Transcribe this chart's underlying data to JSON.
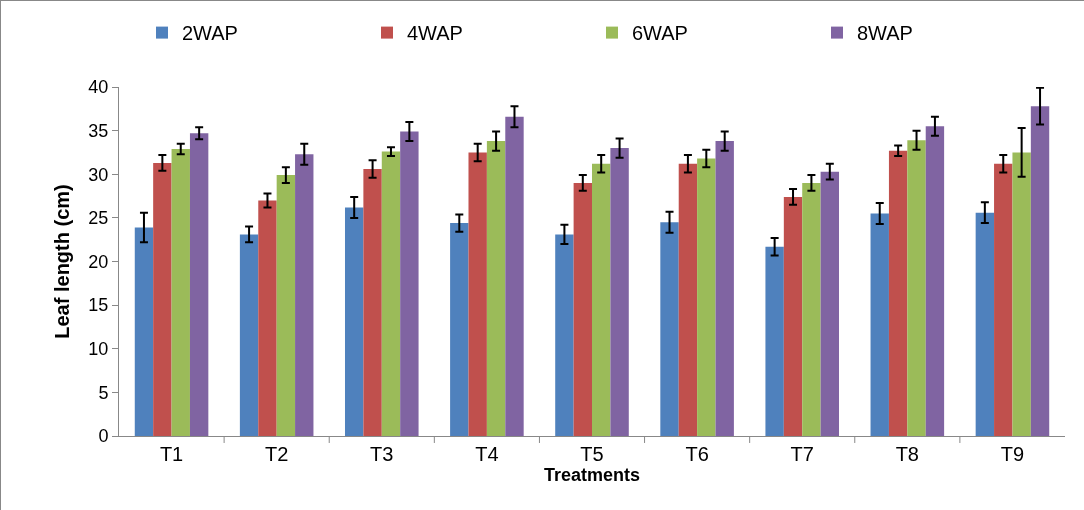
{
  "chart_data": {
    "type": "bar",
    "xlabel": "Treatments",
    "ylabel": "Leaf length (cm)",
    "categories": [
      "T1",
      "T2",
      "T3",
      "T4",
      "T5",
      "T6",
      "T7",
      "T8",
      "T9"
    ],
    "series": [
      {
        "name": "2WAP",
        "color": "#4f81bd",
        "values": [
          23.9,
          23.1,
          26.2,
          24.4,
          23.1,
          24.5,
          21.7,
          25.5,
          25.6
        ],
        "errors": [
          1.7,
          0.9,
          1.2,
          1.0,
          1.1,
          1.2,
          1.0,
          1.2,
          1.2
        ]
      },
      {
        "name": "4WAP",
        "color": "#c0504d",
        "values": [
          31.3,
          27.0,
          30.6,
          32.5,
          29.0,
          31.2,
          27.4,
          32.7,
          31.2
        ],
        "errors": [
          0.9,
          0.8,
          1.0,
          1.0,
          0.9,
          1.0,
          0.9,
          0.6,
          1.0
        ]
      },
      {
        "name": "6WAP",
        "color": "#9bbb59",
        "values": [
          32.9,
          29.9,
          32.6,
          33.8,
          31.2,
          31.8,
          29.0,
          33.9,
          32.5
        ],
        "errors": [
          0.6,
          0.9,
          0.5,
          1.1,
          1.0,
          1.0,
          0.9,
          1.1,
          2.8
        ]
      },
      {
        "name": "8WAP",
        "color": "#8064a2",
        "values": [
          34.7,
          32.3,
          34.9,
          36.6,
          33.0,
          33.8,
          30.3,
          35.5,
          37.8
        ],
        "errors": [
          0.7,
          1.2,
          1.1,
          1.2,
          1.1,
          1.1,
          0.9,
          1.1,
          2.1
        ]
      }
    ],
    "ylim": [
      0,
      40
    ],
    "yticks": [
      0,
      5,
      10,
      15,
      20,
      25,
      30,
      35,
      40
    ],
    "grid": false,
    "legend": "top"
  }
}
